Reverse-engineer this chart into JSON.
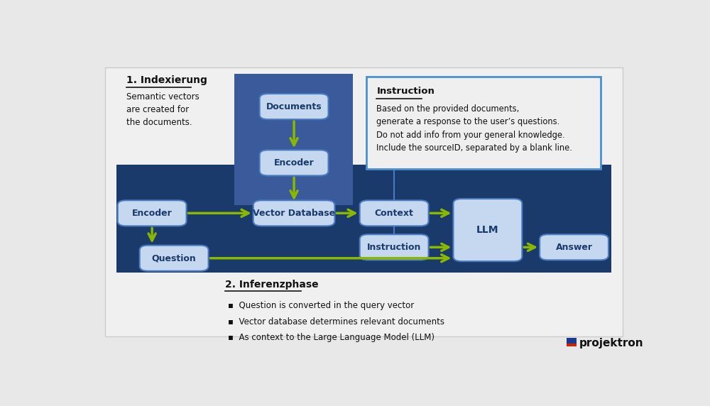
{
  "bg_color": "#e8e8e8",
  "main_bg": "#1a3a6b",
  "index_bg": "#3a5a9b",
  "box_light": "#c5d8f0",
  "box_border": "#4a7abf",
  "arrow_color": "#8ab800",
  "instruction_box_border": "#4a90d0",
  "title1": "1. Indexierung",
  "desc1": "Semantic vectors\nare created for\nthe documents.",
  "title2": "2. Inferenzphase",
  "bullets": [
    "Question is converted in the query vector",
    "Vector database determines relevant documents",
    "As context to the Large Language Model (LLM)"
  ],
  "instruction_title": "Instruction",
  "instruction_text": "Based on the provided documents,\ngenerate a response to the user’s questions.\nDo not add info from your general knowledge.\nInclude the sourceID, separated by a blank line.",
  "text_dark": "#1a3a6b",
  "text_black": "#111111"
}
